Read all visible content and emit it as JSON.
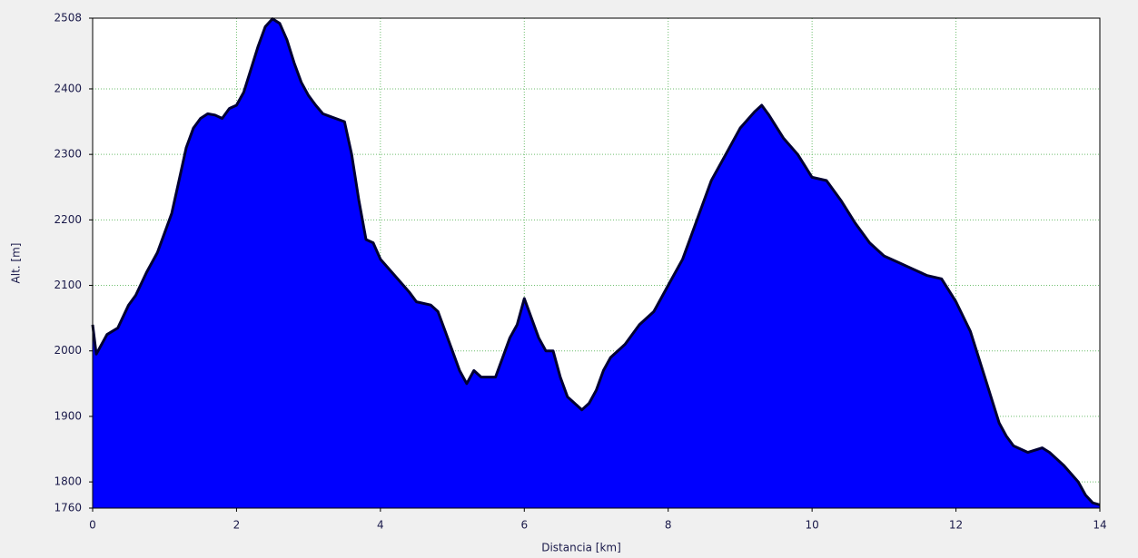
{
  "chart_data": {
    "type": "area",
    "x_label": "Distancia [km]",
    "y_label": "Alt. [m]",
    "x": [
      0,
      0.05,
      0.2,
      0.35,
      0.5,
      0.6,
      0.75,
      0.9,
      1.0,
      1.1,
      1.2,
      1.3,
      1.4,
      1.5,
      1.6,
      1.7,
      1.8,
      1.9,
      2.0,
      2.1,
      2.2,
      2.3,
      2.4,
      2.5,
      2.6,
      2.7,
      2.8,
      2.9,
      3.0,
      3.1,
      3.2,
      3.3,
      3.5,
      3.6,
      3.7,
      3.8,
      3.9,
      4.0,
      4.2,
      4.4,
      4.5,
      4.7,
      4.8,
      4.9,
      5.0,
      5.1,
      5.2,
      5.3,
      5.4,
      5.6,
      5.7,
      5.8,
      5.9,
      6.0,
      6.1,
      6.2,
      6.3,
      6.4,
      6.5,
      6.6,
      6.7,
      6.8,
      6.9,
      7.0,
      7.1,
      7.2,
      7.4,
      7.6,
      7.8,
      8.0,
      8.2,
      8.4,
      8.6,
      8.8,
      9.0,
      9.2,
      9.3,
      9.4,
      9.6,
      9.8,
      10.0,
      10.2,
      10.4,
      10.6,
      10.8,
      11.0,
      11.2,
      11.4,
      11.6,
      11.8,
      12.0,
      12.2,
      12.4,
      12.6,
      12.7,
      12.8,
      13.0,
      13.2,
      13.3,
      13.5,
      13.7,
      13.8,
      13.9,
      14.0
    ],
    "values": [
      2040,
      1995,
      2025,
      2035,
      2070,
      2085,
      2120,
      2150,
      2180,
      2210,
      2260,
      2310,
      2340,
      2355,
      2362,
      2360,
      2355,
      2370,
      2375,
      2395,
      2430,
      2465,
      2495,
      2507,
      2500,
      2475,
      2440,
      2410,
      2390,
      2375,
      2362,
      2358,
      2350,
      2300,
      2230,
      2170,
      2165,
      2140,
      2115,
      2090,
      2075,
      2070,
      2060,
      2030,
      2000,
      1970,
      1950,
      1970,
      1960,
      1960,
      1990,
      2020,
      2040,
      2080,
      2050,
      2020,
      2000,
      2000,
      1960,
      1930,
      1920,
      1910,
      1920,
      1940,
      1970,
      1990,
      2010,
      2040,
      2060,
      2100,
      2140,
      2200,
      2260,
      2300,
      2340,
      2365,
      2375,
      2360,
      2325,
      2300,
      2265,
      2260,
      2230,
      2195,
      2165,
      2145,
      2135,
      2125,
      2115,
      2110,
      2075,
      2030,
      1960,
      1890,
      1870,
      1855,
      1845,
      1852,
      1845,
      1825,
      1800,
      1780,
      1768,
      1765
    ],
    "color": "#0000ff",
    "line_color": "#000033",
    "xlim": [
      0,
      14
    ],
    "xticks": [
      0,
      2,
      4,
      6,
      8,
      10,
      12,
      14
    ],
    "ylim": [
      1760,
      2508
    ],
    "yticks": [
      1760,
      1800,
      1900,
      2000,
      2100,
      2200,
      2300,
      2400,
      2508
    ],
    "grid": true
  }
}
